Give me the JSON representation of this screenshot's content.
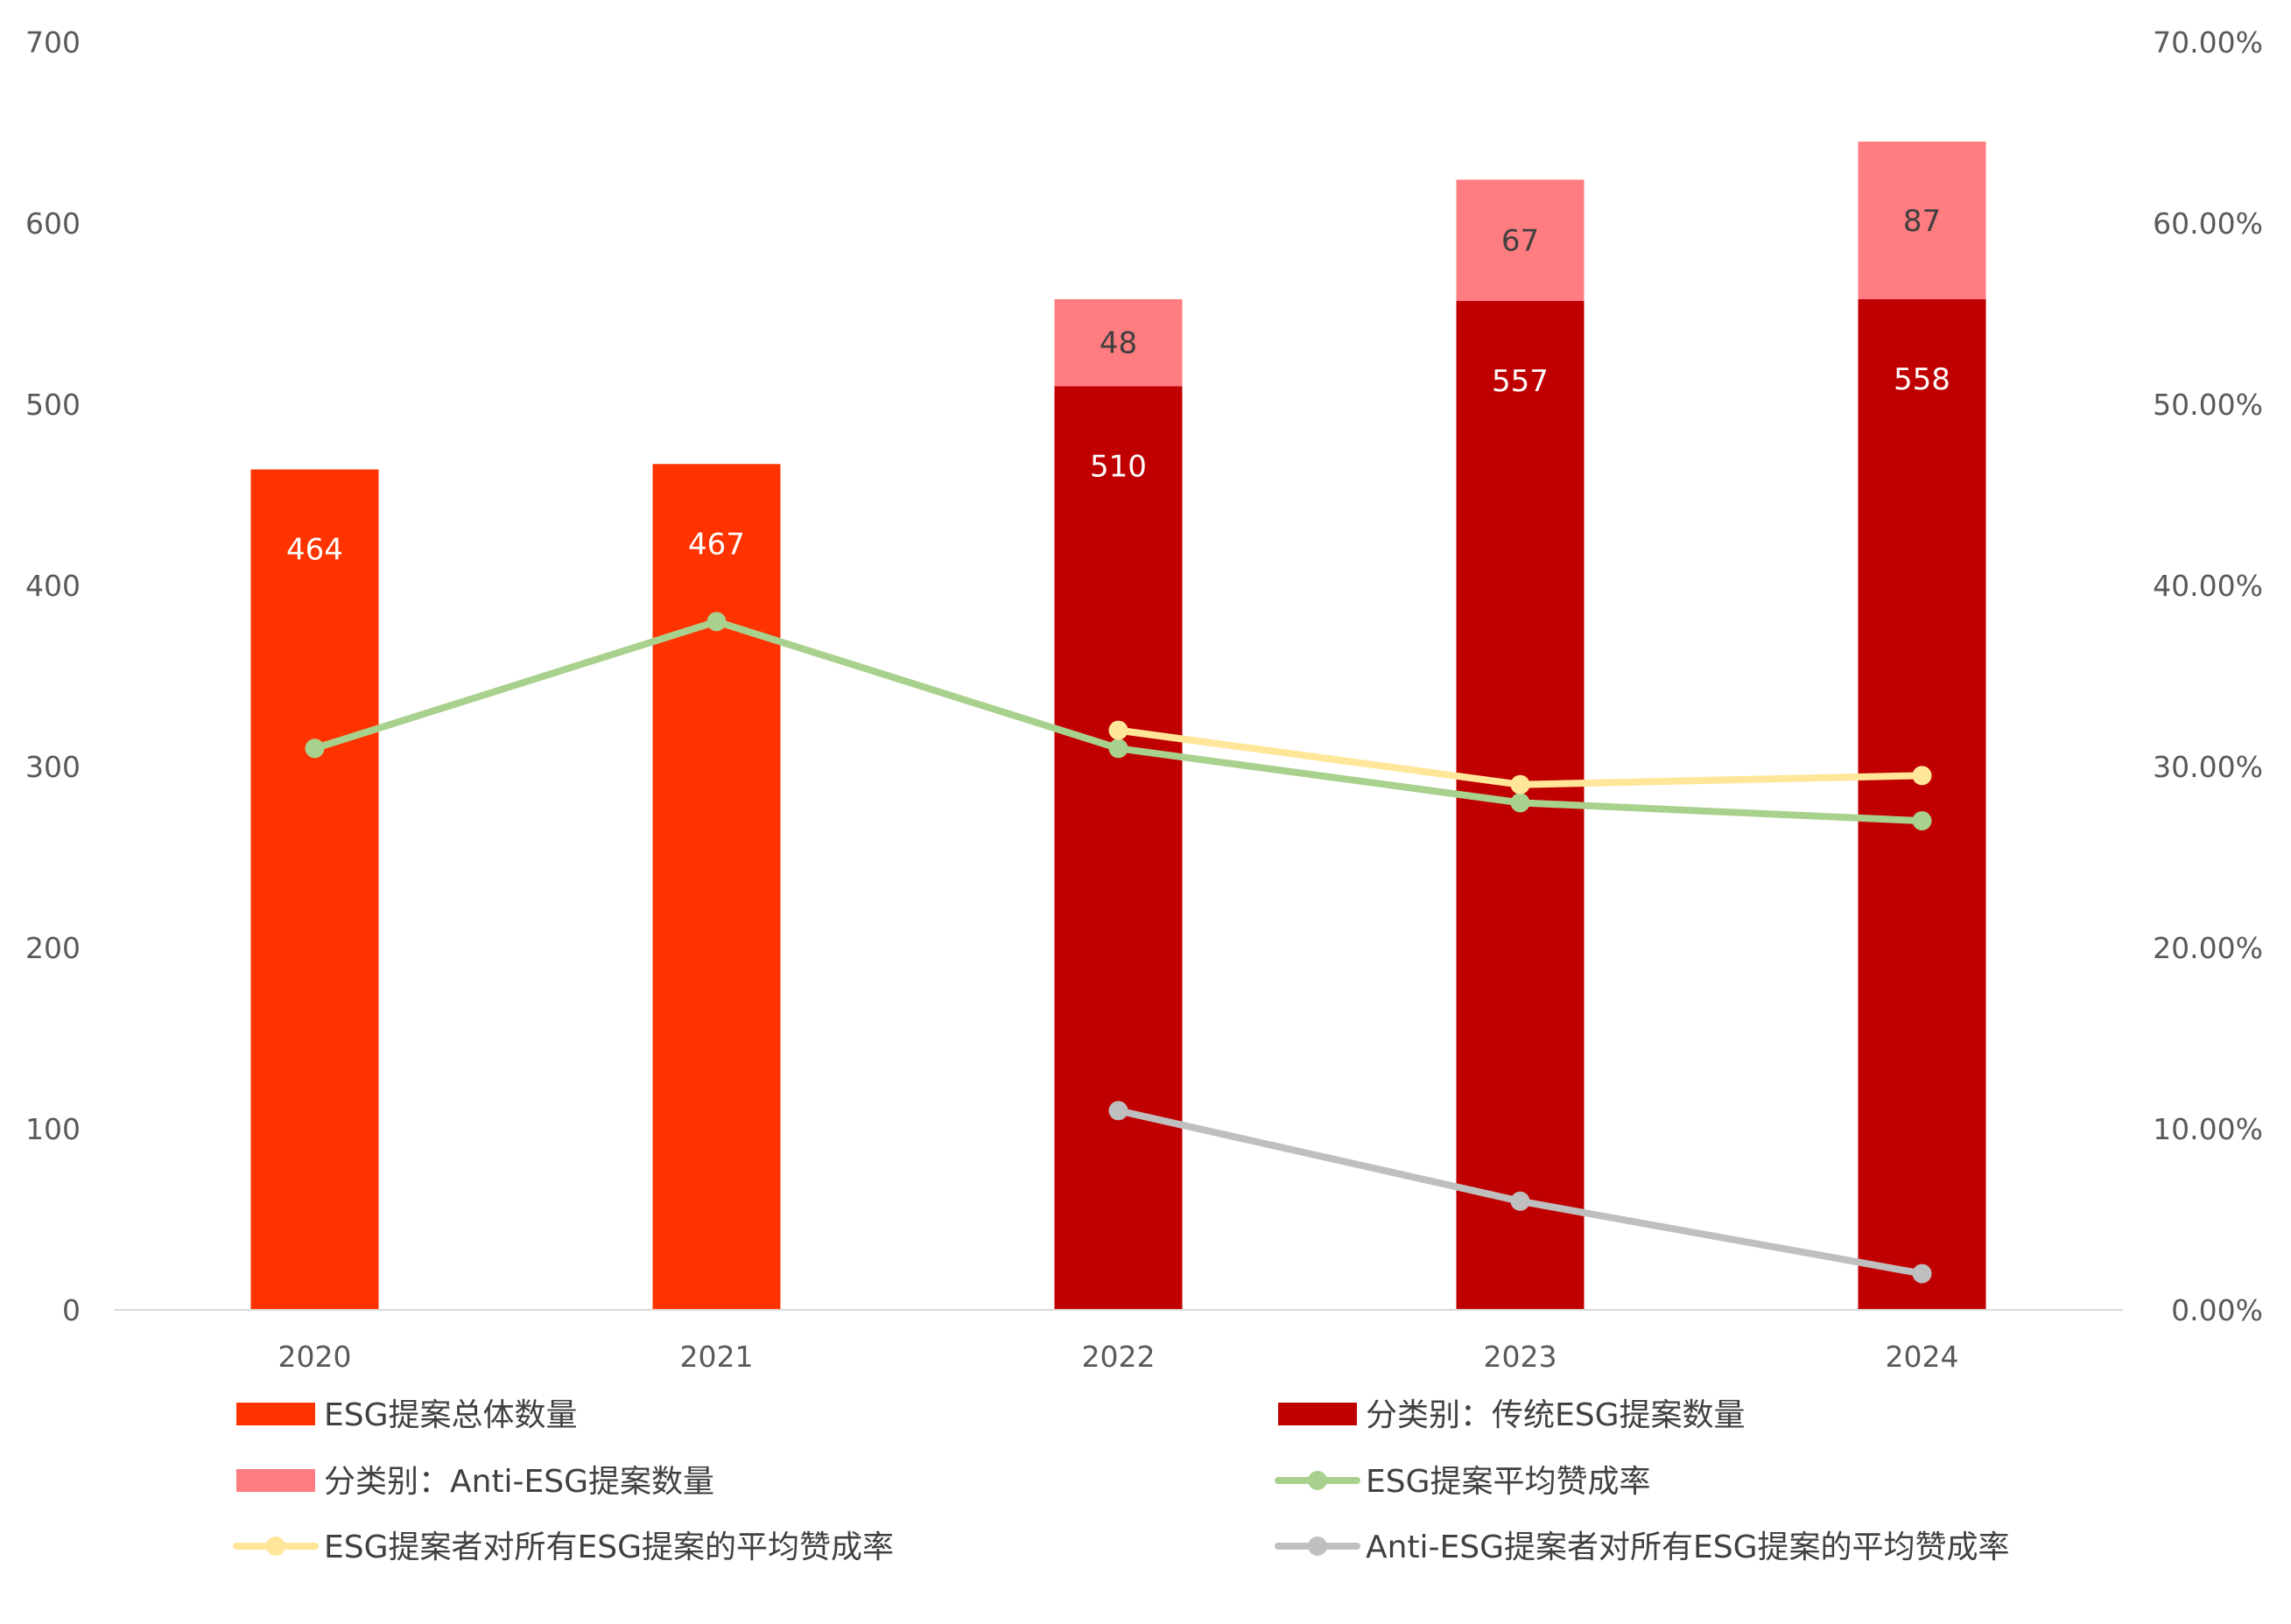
{
  "chart_data": {
    "type": "bar",
    "categories": [
      "2020",
      "2021",
      "2022",
      "2023",
      "2024"
    ],
    "y_left": {
      "range": [
        0,
        700
      ],
      "ticks": [
        "0",
        "100",
        "200",
        "300",
        "400",
        "500",
        "600",
        "700"
      ]
    },
    "y_right": {
      "range": [
        0,
        0.7
      ],
      "ticks": [
        "0.00%",
        "10.00%",
        "20.00%",
        "30.00%",
        "40.00%",
        "50.00%",
        "60.00%",
        "70.00%"
      ]
    },
    "grid": false,
    "legend_position": "bottom",
    "bar_series": [
      {
        "name": "ESG提案总体数量",
        "color": "#FF3300",
        "values": [
          464,
          467,
          null,
          null,
          null
        ],
        "stack": 0,
        "label_color": "white"
      },
      {
        "name": "分类别：传统ESG提案数量",
        "color": "#C00000",
        "values": [
          null,
          null,
          510,
          557,
          558
        ],
        "stack": 0,
        "label_color": "white"
      },
      {
        "name": "分类别：Anti-ESG提案数量",
        "color": "#FF7C80",
        "values": [
          null,
          null,
          48,
          67,
          87
        ],
        "stack": 1,
        "label_color": "dark"
      }
    ],
    "line_series": [
      {
        "name": "ESG提案平均赞成率",
        "color": "#A9D18E",
        "values": [
          0.31,
          0.38,
          0.31,
          0.28,
          0.27
        ]
      },
      {
        "name": "ESG提案者对所有ESG提案的平均赞成率",
        "color": "#FFE699",
        "values": [
          null,
          null,
          0.32,
          0.29,
          0.295
        ]
      },
      {
        "name": "Anti-ESG提案者对所有ESG提案的平均赞成率",
        "color": "#BFBFBF",
        "values": [
          null,
          null,
          0.11,
          0.06,
          0.02
        ]
      }
    ],
    "legend": [
      {
        "label": "ESG提案总体数量",
        "kind": "bar",
        "color": "#FF3300"
      },
      {
        "label": "分类别：传统ESG提案数量",
        "kind": "bar",
        "color": "#C00000"
      },
      {
        "label": "分类别：Anti-ESG提案数量",
        "kind": "bar",
        "color": "#FF7C80"
      },
      {
        "label": "ESG提案平均赞成率",
        "kind": "line",
        "color": "#A9D18E"
      },
      {
        "label": "ESG提案者对所有ESG提案的平均赞成率",
        "kind": "line",
        "color": "#FFE699"
      },
      {
        "label": "Anti-ESG提案者对所有ESG提案的平均赞成率",
        "kind": "line",
        "color": "#BFBFBF"
      }
    ]
  }
}
